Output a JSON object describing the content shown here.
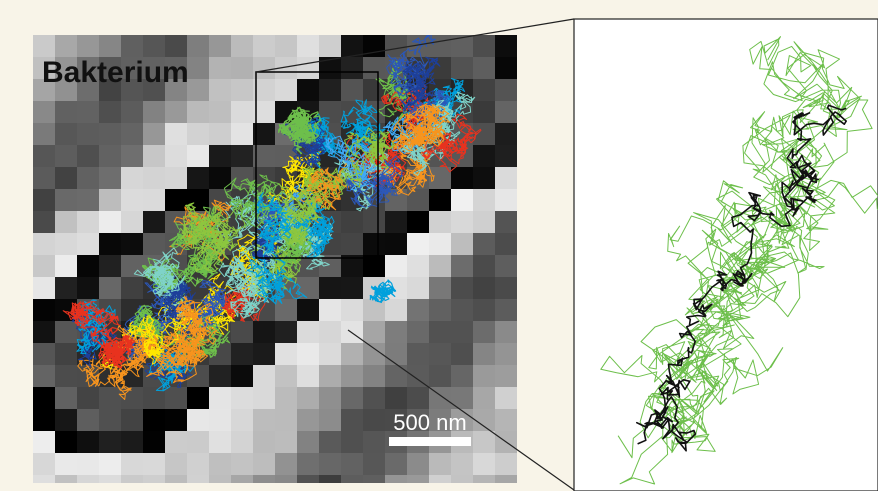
{
  "image": {
    "label": "Bakterium",
    "scale_bar": "500 nm"
  }
}
